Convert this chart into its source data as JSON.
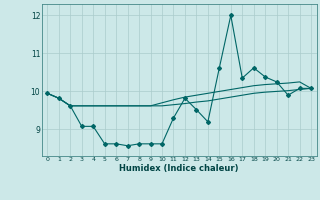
{
  "xlabel": "Humidex (Indice chaleur)",
  "bg_color": "#cce8e8",
  "grid_color": "#aacccc",
  "line_color": "#006666",
  "x": [
    0,
    1,
    2,
    3,
    4,
    5,
    6,
    7,
    8,
    9,
    10,
    11,
    12,
    13,
    14,
    15,
    16,
    17,
    18,
    19,
    20,
    21,
    22,
    23
  ],
  "series1": [
    9.95,
    9.82,
    9.62,
    9.08,
    9.08,
    8.62,
    8.62,
    8.57,
    8.62,
    8.62,
    8.62,
    9.3,
    9.82,
    9.52,
    9.2,
    10.62,
    12.0,
    10.35,
    10.62,
    10.38,
    10.25,
    9.9,
    10.08,
    10.08
  ],
  "series2": [
    9.95,
    9.82,
    9.62,
    9.62,
    9.62,
    9.62,
    9.62,
    9.62,
    9.62,
    9.62,
    9.62,
    9.65,
    9.68,
    9.72,
    9.75,
    9.8,
    9.85,
    9.9,
    9.95,
    9.98,
    10.0,
    10.02,
    10.05,
    10.08
  ],
  "series3": [
    9.95,
    9.82,
    9.62,
    9.62,
    9.62,
    9.62,
    9.62,
    9.62,
    9.62,
    9.62,
    9.7,
    9.78,
    9.85,
    9.9,
    9.95,
    10.0,
    10.05,
    10.1,
    10.15,
    10.18,
    10.2,
    10.22,
    10.25,
    10.08
  ],
  "ylim": [
    8.3,
    12.3
  ],
  "xlim": [
    -0.5,
    23.5
  ],
  "yticks": [
    9,
    10,
    11,
    12
  ],
  "xticks": [
    0,
    1,
    2,
    3,
    4,
    5,
    6,
    7,
    8,
    9,
    10,
    11,
    12,
    13,
    14,
    15,
    16,
    17,
    18,
    19,
    20,
    21,
    22,
    23
  ],
  "xtick_labels": [
    "0",
    "1",
    "2",
    "3",
    "4",
    "5",
    "6",
    "7",
    "8",
    "9",
    "10",
    "11",
    "12",
    "13",
    "14",
    "15",
    "16",
    "17",
    "18",
    "19",
    "20",
    "21",
    "22",
    "23"
  ]
}
